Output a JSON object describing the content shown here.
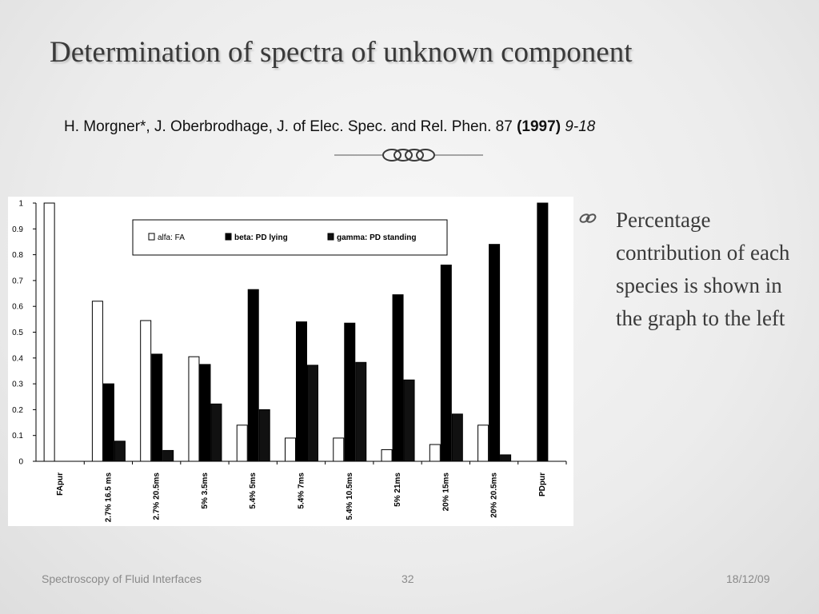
{
  "slide": {
    "title": "Determination of spectra of unknown component",
    "citation": {
      "authors": "H. Morgner*, J. Oberbrodhage, J. of Elec. Spec. and Rel. Phen. 87",
      "year": "(1997)",
      "pages": "9-18"
    },
    "divider_icon": "ornamental-knot-divider",
    "bullet": {
      "icon": "interlocked-rings-bullet",
      "text": "Percentage contribution of each species is shown in the graph to the left"
    },
    "footer": {
      "left": "Spectroscopy of Fluid Interfaces",
      "page": "32",
      "date": "18/12/09"
    }
  },
  "chart_data": {
    "type": "bar",
    "title": "",
    "xlabel": "",
    "ylabel": "",
    "ylim": [
      0,
      1
    ],
    "yticks": [
      "0",
      "0.1",
      "0.2",
      "0.3",
      "0.4",
      "0.5",
      "0.6",
      "0.7",
      "0.8",
      "0.9",
      "1"
    ],
    "grid": false,
    "legend_position": "top",
    "categories": [
      "FApur",
      "2.7% 16.5 ms",
      "2.7% 20.5ms",
      "5% 3.5ms",
      "5.4% 5ms",
      "5.4% 7ms",
      "5.4% 10.5ms",
      "5% 21ms",
      "20% 15ms",
      "20% 20.5ms",
      "PDpur"
    ],
    "series": [
      {
        "name": "alfa: FA",
        "color": "#ffffff",
        "values": [
          1.0,
          0.62,
          0.545,
          0.405,
          0.14,
          0.09,
          0.09,
          0.045,
          0.065,
          0.14,
          0
        ]
      },
      {
        "name": "beta: PD lying",
        "color": "#000000",
        "values": [
          0,
          0.3,
          0.415,
          0.375,
          0.665,
          0.54,
          0.535,
          0.645,
          0.76,
          0.84,
          1.0
        ]
      },
      {
        "name": "gamma: PD standing",
        "color": "#111111",
        "values": [
          0,
          0.078,
          0.042,
          0.222,
          0.2,
          0.372,
          0.383,
          0.315,
          0.183,
          0.025,
          0
        ]
      }
    ]
  }
}
